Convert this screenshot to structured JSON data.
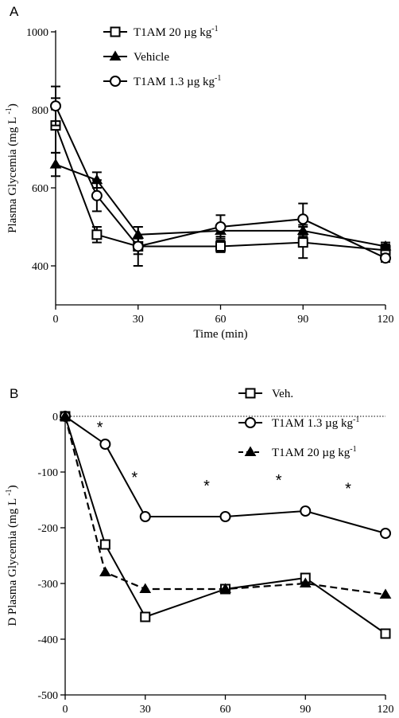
{
  "chart_data": [
    {
      "type": "line",
      "panel_label": "A",
      "xlabel": "Time (min)",
      "ylabel": "Plasma Glycemia (mg L",
      "ylabel_sup": "-1",
      "ylabel_close": ")",
      "xlim": [
        0,
        120
      ],
      "ylim": [
        300,
        1000
      ],
      "xticks": [
        0,
        30,
        60,
        90,
        120
      ],
      "yticks": [
        400,
        600,
        800,
        1000
      ],
      "grid": false,
      "legend_position": "top-right",
      "series": [
        {
          "name": "T1AM 20 µg kg",
          "name_sup": "-1",
          "marker": "square",
          "x": [
            0,
            15,
            30,
            60,
            90,
            120
          ],
          "y": [
            760,
            480,
            450,
            450,
            460,
            440
          ],
          "err": [
            70,
            20,
            20,
            15,
            40,
            15
          ]
        },
        {
          "name": "Vehicle",
          "marker": "triangle",
          "x": [
            0,
            15,
            30,
            60,
            90,
            120
          ],
          "y": [
            660,
            620,
            480,
            490,
            490,
            450
          ],
          "err": [
            30,
            20,
            20,
            15,
            15,
            10
          ]
        },
        {
          "name": "T1AM 1.3 µg kg",
          "name_sup": "-1",
          "marker": "circle",
          "x": [
            0,
            15,
            30,
            60,
            90,
            120
          ],
          "y": [
            810,
            580,
            450,
            500,
            520,
            420
          ],
          "err": [
            50,
            40,
            50,
            30,
            40,
            10
          ]
        }
      ]
    },
    {
      "type": "line",
      "panel_label": "B",
      "xlabel": "Time (min)",
      "ylabel": "D Plasma Glycemia (mg L",
      "ylabel_sup": "-1",
      "ylabel_close": ")",
      "xlim": [
        0,
        120
      ],
      "ylim": [
        -500,
        0
      ],
      "xticks": [
        0,
        30,
        60,
        90,
        120
      ],
      "yticks": [
        0,
        -100,
        -200,
        -300,
        -400,
        -500
      ],
      "grid": false,
      "zero_line": "dotted",
      "legend_position": "top-right",
      "series": [
        {
          "name": "Veh.",
          "marker": "square",
          "line": "solid",
          "x": [
            0,
            15,
            30,
            60,
            90,
            120
          ],
          "y": [
            0,
            -230,
            -360,
            -310,
            -290,
            -390
          ]
        },
        {
          "name": "T1AM 1.3 µg kg",
          "name_sup": "-1",
          "marker": "circle",
          "line": "solid",
          "x": [
            0,
            15,
            30,
            60,
            90,
            120
          ],
          "y": [
            0,
            -50,
            -180,
            -180,
            -170,
            -210
          ]
        },
        {
          "name": "T1AM 20 µg kg",
          "name_sup": "-1",
          "marker": "triangle",
          "line": "dashed",
          "x": [
            0,
            15,
            30,
            60,
            90,
            120
          ],
          "y": [
            0,
            -280,
            -310,
            -310,
            -300,
            -320
          ]
        }
      ],
      "annotations": [
        {
          "text": "*",
          "x": 13,
          "y": -15
        },
        {
          "text": "*",
          "x": 26,
          "y": -105
        },
        {
          "text": "*",
          "x": 53,
          "y": -120
        },
        {
          "text": "*",
          "x": 80,
          "y": -110
        },
        {
          "text": "*",
          "x": 106,
          "y": -125
        }
      ]
    }
  ]
}
